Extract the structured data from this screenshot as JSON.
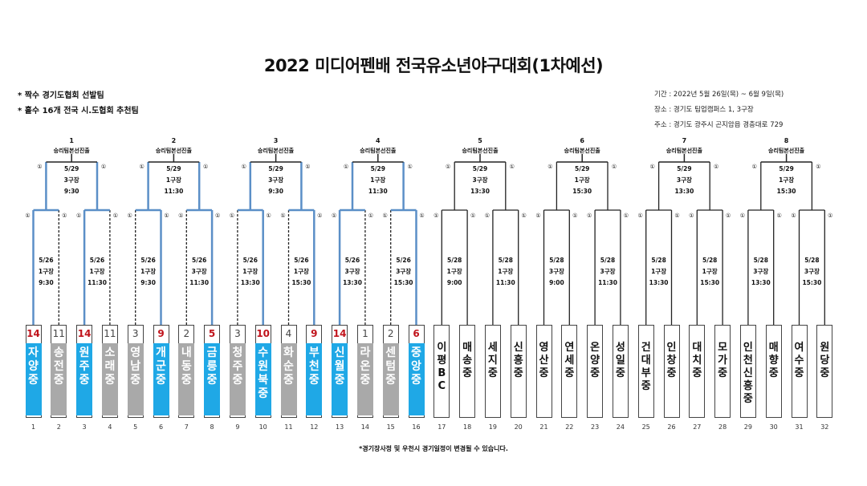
{
  "title": "2022 미디어펜배 전국유소년야구대회(1차예선)",
  "notes": [
    "* 짝수 경기도협회 선발팀",
    "* 홀수 16개 전국 시.도협회 추천팀"
  ],
  "info": [
    "기간 : 2022년 5월 26일(목) ~ 6월 9일(목)",
    "장소 : 경기도 팀업캠퍼스 1, 3구장",
    "주소 : 경기도 광주시 곤지암읍 경충대로 729"
  ],
  "footer": "*경기장사정 및 우천시 경기일정이 변경될 수 있습니다.",
  "round1_marker": "①",
  "round2_marker": "①",
  "advance_label": "승리팀본선진출",
  "groups": [
    {
      "num": "1",
      "final": [
        "5/29",
        "3구장",
        "9:30"
      ],
      "left": [
        "5/26",
        "1구장",
        "9:30"
      ],
      "right": [
        "5/26",
        "1구장",
        "11:30"
      ]
    },
    {
      "num": "2",
      "final": [
        "5/29",
        "1구장",
        "11:30"
      ],
      "left": [
        "5/26",
        "1구장",
        "9:30"
      ],
      "right": [
        "5/26",
        "3구장",
        "11:30"
      ]
    },
    {
      "num": "3",
      "final": [
        "5/29",
        "3구장",
        "9:30"
      ],
      "left": [
        "5/26",
        "1구장",
        "13:30"
      ],
      "right": [
        "5/26",
        "1구장",
        "15:30"
      ]
    },
    {
      "num": "4",
      "final": [
        "5/29",
        "1구장",
        "11:30"
      ],
      "left": [
        "5/26",
        "3구장",
        "13:30"
      ],
      "right": [
        "5/26",
        "3구장",
        "15:30"
      ]
    },
    {
      "num": "5",
      "final": [
        "5/29",
        "3구장",
        "13:30"
      ],
      "left": [
        "5/28",
        "1구장",
        "9:00"
      ],
      "right": [
        "5/28",
        "1구장",
        "11:30"
      ]
    },
    {
      "num": "6",
      "final": [
        "5/29",
        "1구장",
        "15:30"
      ],
      "left": [
        "5/28",
        "3구장",
        "9:00"
      ],
      "right": [
        "5/28",
        "3구장",
        "11:30"
      ]
    },
    {
      "num": "7",
      "final": [
        "5/29",
        "3구장",
        "13:30"
      ],
      "left": [
        "5/28",
        "1구장",
        "13:30"
      ],
      "right": [
        "5/28",
        "1구장",
        "15:30"
      ]
    },
    {
      "num": "8",
      "final": [
        "5/29",
        "1구장",
        "15:30"
      ],
      "left": [
        "5/28",
        "3구장",
        "13:30"
      ],
      "right": [
        "5/28",
        "3구장",
        "15:30"
      ]
    }
  ],
  "teams": [
    {
      "slot": "1",
      "name": "자양중",
      "score": "14",
      "result": "winner"
    },
    {
      "slot": "2",
      "name": "송전중",
      "score": "11",
      "result": "loser"
    },
    {
      "slot": "3",
      "name": "원주중",
      "score": "14",
      "result": "winner"
    },
    {
      "slot": "4",
      "name": "소래중",
      "score": "11",
      "result": "loser"
    },
    {
      "slot": "5",
      "name": "영남중",
      "score": "3",
      "result": "loser"
    },
    {
      "slot": "6",
      "name": "개군중",
      "score": "9",
      "result": "winner"
    },
    {
      "slot": "7",
      "name": "내동중",
      "score": "2",
      "result": "loser"
    },
    {
      "slot": "8",
      "name": "금릉중",
      "score": "5",
      "result": "winner"
    },
    {
      "slot": "9",
      "name": "청주중",
      "score": "3",
      "result": "loser"
    },
    {
      "slot": "10",
      "name": "수원북중",
      "score": "10",
      "result": "winner"
    },
    {
      "slot": "11",
      "name": "화순중",
      "score": "4",
      "result": "loser"
    },
    {
      "slot": "12",
      "name": "부천중",
      "score": "9",
      "result": "winner"
    },
    {
      "slot": "13",
      "name": "신월중",
      "score": "14",
      "result": "winner"
    },
    {
      "slot": "14",
      "name": "라온중",
      "score": "1",
      "result": "loser"
    },
    {
      "slot": "15",
      "name": "센텀중",
      "score": "2",
      "result": "loser"
    },
    {
      "slot": "16",
      "name": "중앙중",
      "score": "6",
      "result": "winner"
    },
    {
      "slot": "17",
      "name": "이평BC",
      "score": "",
      "result": "pending"
    },
    {
      "slot": "18",
      "name": "매송중",
      "score": "",
      "result": "pending"
    },
    {
      "slot": "19",
      "name": "세지중",
      "score": "",
      "result": "pending"
    },
    {
      "slot": "20",
      "name": "신흥중",
      "score": "",
      "result": "pending"
    },
    {
      "slot": "21",
      "name": "영산중",
      "score": "",
      "result": "pending"
    },
    {
      "slot": "22",
      "name": "연세중",
      "score": "",
      "result": "pending"
    },
    {
      "slot": "23",
      "name": "온양중",
      "score": "",
      "result": "pending"
    },
    {
      "slot": "24",
      "name": "성일중",
      "score": "",
      "result": "pending"
    },
    {
      "slot": "25",
      "name": "건대부중",
      "score": "",
      "result": "pending"
    },
    {
      "slot": "26",
      "name": "인창중",
      "score": "",
      "result": "pending"
    },
    {
      "slot": "27",
      "name": "대치중",
      "score": "",
      "result": "pending"
    },
    {
      "slot": "28",
      "name": "모가중",
      "score": "",
      "result": "pending"
    },
    {
      "slot": "29",
      "name": "인천신흥중",
      "score": "",
      "result": "pending"
    },
    {
      "slot": "30",
      "name": "매향중",
      "score": "",
      "result": "pending"
    },
    {
      "slot": "31",
      "name": "여수중",
      "score": "",
      "result": "pending"
    },
    {
      "slot": "32",
      "name": "원당중",
      "score": "",
      "result": "pending"
    }
  ],
  "colors": {
    "winner_fill": "#1fa8e6",
    "loser_fill": "#a9a9a9",
    "win_line": "#5b8fc7",
    "win_score": "#c0131b"
  }
}
